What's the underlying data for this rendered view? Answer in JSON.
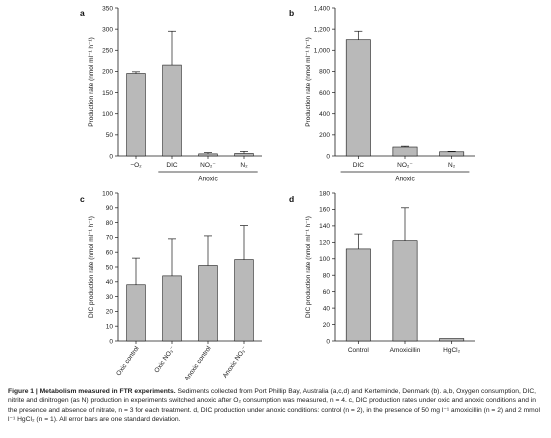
{
  "figure": {
    "caption": {
      "title": "Figure 1 | Metabolism measured in FTR experiments.",
      "body": " Sediments collected from Port Phillip Bay, Australia (a,c,d) and Kerteminde, Denmark (b). a,b, Oxygen consumption, DIC, nitrite and dinitrogen (as N) production in experiments switched anoxic after O₂ consumption was measured, n = 4. c, DIC production rates under oxic and anoxic conditions and in the presence and absence of nitrate, n = 3 for each treatment. d, DIC production under anoxic conditions: control (n = 2), in the presence of 50 mg l⁻¹ amoxicillin (n = 2) and 2 mmol l⁻¹ HgCl₂ (n = 1). All error bars are one standard deviation."
    }
  },
  "colors": {
    "bar_fill": "#b9b9b9",
    "bar_stroke": "#1a1a1a",
    "axis": "#1a1a1a"
  },
  "chart_data": [
    {
      "panel": "a",
      "type": "bar",
      "categories": [
        "−O₂",
        "DIC",
        "NO₂⁻",
        "N₂"
      ],
      "values": [
        195,
        215,
        5,
        6
      ],
      "errors": [
        4,
        80,
        3,
        5
      ],
      "ylabel": "Production rate (nmol ml⁻¹ h⁻¹)",
      "ylim": [
        0,
        350
      ],
      "yticks": [
        0,
        50,
        100,
        150,
        200,
        250,
        300,
        350
      ],
      "yticklabels": [
        "0",
        "50",
        "100",
        "150",
        "200",
        "250",
        "300",
        "350"
      ],
      "group_label": "Anoxic",
      "group_span": [
        1,
        3
      ],
      "rotate_xticks": false
    },
    {
      "panel": "b",
      "type": "bar",
      "categories": [
        "DIC",
        "NO₂⁻",
        "N₂"
      ],
      "values": [
        1100,
        85,
        40
      ],
      "errors": [
        80,
        8,
        4
      ],
      "ylabel": "Production rate (nmol ml⁻¹ h⁻¹)",
      "ylim": [
        0,
        1400
      ],
      "yticks": [
        0,
        200,
        400,
        600,
        800,
        1000,
        1200,
        1400
      ],
      "yticklabels": [
        "0",
        "200",
        "400",
        "600",
        "800",
        "1,000",
        "1,200",
        "1,400"
      ],
      "group_label": "Anoxic",
      "group_span": [
        0,
        2
      ],
      "rotate_xticks": false
    },
    {
      "panel": "c",
      "type": "bar",
      "categories": [
        "Oxic control",
        "Oxic NO₃⁻",
        "Anoxic control",
        "Anoxic NO₃⁻"
      ],
      "values": [
        38,
        44,
        51,
        55
      ],
      "errors": [
        18,
        25,
        20,
        23
      ],
      "ylabel": "DIC production rate (nmol ml⁻¹ h⁻¹)",
      "ylim": [
        0,
        100
      ],
      "yticks": [
        0,
        10,
        20,
        30,
        40,
        50,
        60,
        70,
        80,
        90,
        100
      ],
      "yticklabels": [
        "0",
        "10",
        "20",
        "30",
        "40",
        "50",
        "60",
        "70",
        "80",
        "90",
        "100"
      ],
      "group_label": "",
      "rotate_xticks": true
    },
    {
      "panel": "d",
      "type": "bar",
      "categories": [
        "Control",
        "Amoxicillin",
        "HgCl₂"
      ],
      "values": [
        112,
        122,
        3
      ],
      "errors": [
        18,
        40,
        0
      ],
      "ylabel": "DIC production rate (nmol ml⁻¹ h⁻¹)",
      "ylim": [
        0,
        180
      ],
      "yticks": [
        0,
        20,
        40,
        60,
        80,
        100,
        120,
        140,
        160,
        180
      ],
      "yticklabels": [
        "0",
        "20",
        "40",
        "60",
        "80",
        "100",
        "120",
        "140",
        "160",
        "180"
      ],
      "group_label": "",
      "rotate_xticks": false
    }
  ]
}
